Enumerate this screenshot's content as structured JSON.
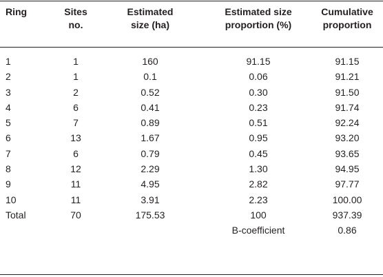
{
  "table": {
    "headers": [
      "Ring",
      "Sites\nno.",
      "Estimated\nsize (ha)",
      "Estimated size\nproportion (%)",
      "Cumulative\nproportion"
    ],
    "rows": [
      [
        "1",
        "1",
        "160",
        "91.15",
        "91.15"
      ],
      [
        "2",
        "1",
        "0.1",
        "0.06",
        "91.21"
      ],
      [
        "3",
        "2",
        "0.52",
        "0.30",
        "91.50"
      ],
      [
        "4",
        "6",
        "0.41",
        "0.23",
        "91.74"
      ],
      [
        "5",
        "7",
        "0.89",
        "0.51",
        "92.24"
      ],
      [
        "6",
        "13",
        "1.67",
        "0.95",
        "93.20"
      ],
      [
        "7",
        "6",
        "0.79",
        "0.45",
        "93.65"
      ],
      [
        "8",
        "12",
        "2.29",
        "1.30",
        "94.95"
      ],
      [
        "9",
        "11",
        "4.95",
        "2.82",
        "97.77"
      ],
      [
        "10",
        "11",
        "3.91",
        "2.23",
        "100.00"
      ],
      [
        "Total",
        "70",
        "175.53",
        "100",
        "937.39"
      ],
      [
        "",
        "",
        "",
        "B-coefficient",
        "0.86"
      ]
    ]
  }
}
